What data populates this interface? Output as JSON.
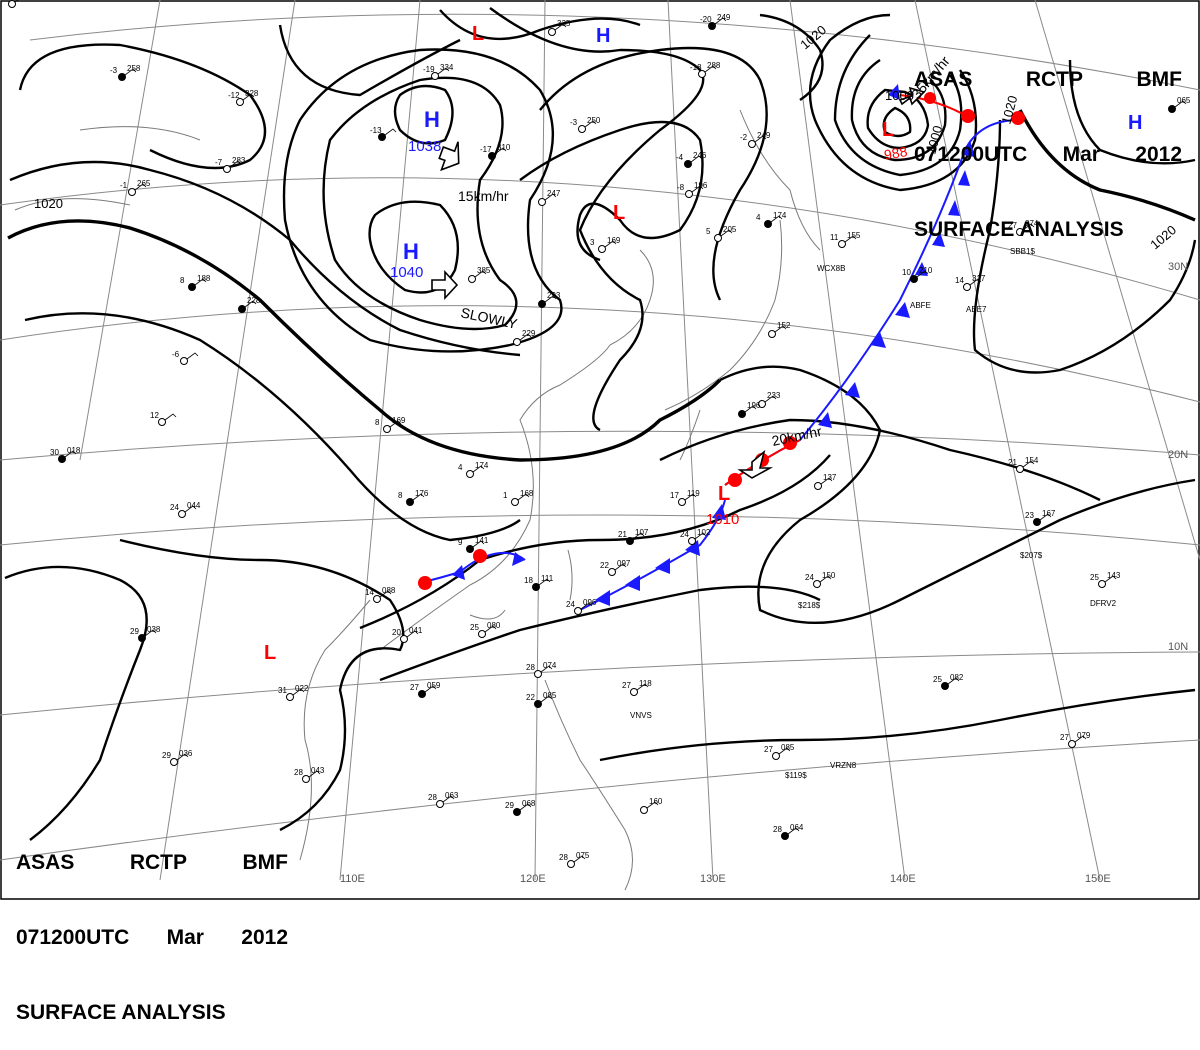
{
  "header": {
    "agency": "ASAS",
    "station": "RCTP",
    "type_code": "BMF",
    "valid_time": "071200UTC",
    "month": "Mar",
    "year": "2012",
    "title": "SURFACE ANALYSIS"
  },
  "grid_labels": {
    "longitudes": [
      "110E",
      "120E",
      "130E",
      "140E",
      "150E"
    ],
    "latitudes": [
      "30N",
      "20N",
      "10N"
    ]
  },
  "pressure_systems": [
    {
      "id": "high-1038",
      "kind": "H",
      "value": "1038"
    },
    {
      "id": "high-1040",
      "kind": "H",
      "value": "1040"
    },
    {
      "id": "high-top",
      "kind": "H",
      "value": ""
    },
    {
      "id": "high-east",
      "kind": "H",
      "value": ""
    },
    {
      "id": "low-top",
      "kind": "L",
      "value": ""
    },
    {
      "id": "low-mid",
      "kind": "L",
      "value": ""
    },
    {
      "id": "low-988",
      "kind": "L",
      "value": "988"
    },
    {
      "id": "low-1010",
      "kind": "L",
      "value": "1010"
    },
    {
      "id": "low-sw",
      "kind": "L",
      "value": ""
    }
  ],
  "isobar_labels": [
    "1020",
    "1020",
    "1020",
    "1000",
    "1000",
    "1020"
  ],
  "motion_labels": [
    "15km/hr",
    "SLOWLY",
    "20km/hr",
    "35km/hr"
  ],
  "stations": [
    {
      "temp": "-3",
      "press": "258"
    },
    {
      "temp": "-12",
      "press": "328"
    },
    {
      "temp": "-19",
      "press": "334"
    },
    {
      "temp": "-13",
      "press": ""
    },
    {
      "temp": "-7",
      "press": "283"
    },
    {
      "temp": "-1",
      "press": "265"
    },
    {
      "temp": "8",
      "press": "188"
    },
    {
      "temp": "-6",
      "press": ""
    },
    {
      "temp": "12",
      "press": ""
    },
    {
      "temp": "30",
      "press": "018"
    },
    {
      "temp": "24",
      "press": "044"
    },
    {
      "temp": "8",
      "press": "169"
    },
    {
      "temp": "8",
      "press": "176"
    },
    {
      "temp": "14",
      "press": "088"
    },
    {
      "temp": "20",
      "press": "041"
    },
    {
      "temp": "29",
      "press": "038"
    },
    {
      "temp": "31",
      "press": "022"
    },
    {
      "temp": "29",
      "press": "036"
    },
    {
      "temp": "27",
      "press": "059"
    },
    {
      "temp": "28",
      "press": "043"
    },
    {
      "temp": "28",
      "press": "063"
    },
    {
      "temp": "29",
      "press": "068"
    },
    {
      "temp": "25",
      "press": "080"
    },
    {
      "temp": "28",
      "press": "074"
    },
    {
      "temp": "22",
      "press": "085"
    },
    {
      "temp": "28",
      "press": "075"
    },
    {
      "temp": "27",
      "press": "118"
    },
    {
      "temp": "18",
      "press": "111"
    },
    {
      "temp": "24",
      "press": "096"
    },
    {
      "temp": "22",
      "press": "097"
    },
    {
      "temp": "21",
      "press": "107"
    },
    {
      "temp": "24",
      "press": "102"
    },
    {
      "temp": "17",
      "press": "119"
    },
    {
      "temp": "9",
      "press": "141"
    },
    {
      "temp": "1",
      "press": "168"
    },
    {
      "temp": "4",
      "press": "174"
    },
    {
      "temp": "-17",
      "press": "310"
    },
    {
      "temp": "-3",
      "press": "250"
    },
    {
      "temp": "-8",
      "press": "196"
    },
    {
      "temp": "-4",
      "press": "246"
    },
    {
      "temp": "5",
      "press": "205"
    },
    {
      "temp": "3",
      "press": "169"
    },
    {
      "temp": "4",
      "press": "174"
    },
    {
      "temp": "-2",
      "press": "249"
    },
    {
      "temp": "-18",
      "press": "288"
    },
    {
      "temp": "-20",
      "press": "249"
    },
    {
      "temp": "",
      "press": "335"
    },
    {
      "temp": "",
      "press": "385"
    },
    {
      "temp": "",
      "press": "293"
    },
    {
      "temp": "",
      "press": "229"
    },
    {
      "temp": "",
      "press": "247"
    },
    {
      "temp": "",
      "press": "228"
    },
    {
      "temp": "",
      "press": "233"
    },
    {
      "temp": "",
      "press": "152"
    },
    {
      "temp": "",
      "press": "196"
    },
    {
      "temp": "",
      "press": "137"
    },
    {
      "temp": "21",
      "press": "154"
    },
    {
      "temp": "23",
      "press": "167"
    },
    {
      "temp": "24",
      "press": "150"
    },
    {
      "temp": "25",
      "press": "143"
    },
    {
      "temp": "25",
      "press": "082"
    },
    {
      "temp": "27",
      "press": "085"
    },
    {
      "temp": "27",
      "press": "079"
    },
    {
      "temp": "28",
      "press": "064"
    },
    {
      "temp": "27",
      "press": "074"
    },
    {
      "temp": "14",
      "press": "317"
    },
    {
      "temp": "10",
      "press": "210"
    },
    {
      "temp": "11",
      "press": "155"
    },
    {
      "temp": "",
      "press": "160"
    },
    {
      "temp": "",
      "press": "065"
    },
    {
      "temp": "12",
      "press": "365"
    }
  ],
  "ship_callsigns": [
    "WCX8B",
    "ABE7",
    "ABFE",
    "SBB1$",
    "$218$",
    "$207$",
    "DFRV2",
    "VRZN8",
    "$119$",
    "VNVS"
  ],
  "colors": {
    "isobar": "#000000",
    "high": "#1a1aff",
    "low": "#ff0000",
    "cold_front": "#1a1aff",
    "warm_front": "#ff0000",
    "grid": "#8a8a8a"
  }
}
